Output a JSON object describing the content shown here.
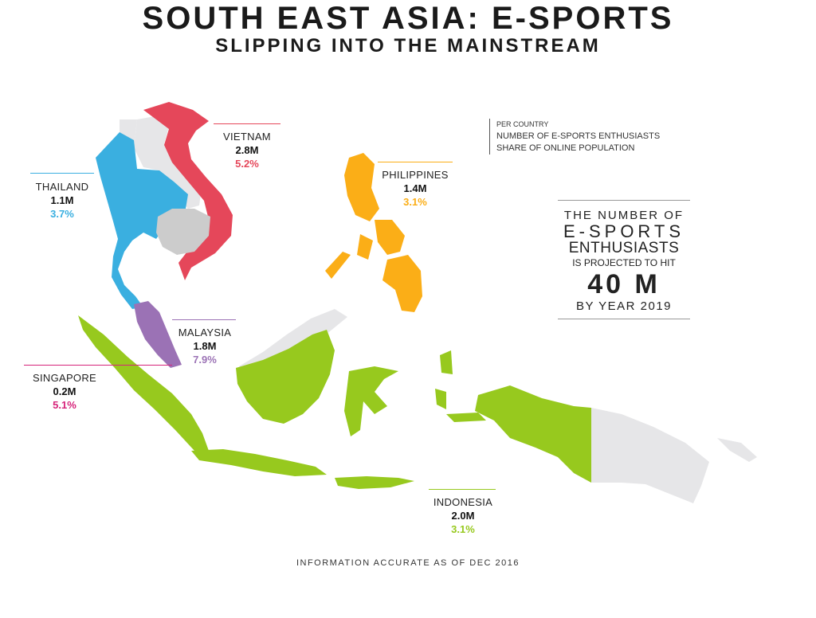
{
  "title": "SOUTH EAST ASIA: E-SPORTS",
  "subtitle": "SLIPPING INTO THE MAINSTREAM",
  "legend": {
    "line1": "PER COUNTRY",
    "line2": "NUMBER OF E-SPORTS ENTHUSIASTS",
    "line3": "SHARE OF ONLINE POPULATION"
  },
  "callout": {
    "line1": "THE NUMBER OF",
    "line2": "E-SPORTS",
    "line3": "ENTHUSIASTS",
    "line4": "IS PROJECTED TO HIT",
    "line5": "40 M",
    "line6": "BY YEAR 2019"
  },
  "countries": {
    "vietnam": {
      "name": "VIETNAM",
      "enthusiasts": "2.8M",
      "share": "5.2%",
      "color": "#e5475a"
    },
    "thailand": {
      "name": "THAILAND",
      "enthusiasts": "1.1M",
      "share": "3.7%",
      "color": "#3aafe0"
    },
    "philippines": {
      "name": "PHILIPPINES",
      "enthusiasts": "1.4M",
      "share": "3.1%",
      "color": "#fbae17"
    },
    "malaysia": {
      "name": "MALAYSIA",
      "enthusiasts": "1.8M",
      "share": "7.9%",
      "color": "#9b72b5"
    },
    "singapore": {
      "name": "SINGAPORE",
      "enthusiasts": "0.2M",
      "share": "5.1%",
      "color": "#d6237a"
    },
    "indonesia": {
      "name": "INDONESIA",
      "enthusiasts": "2.0M",
      "share": "3.1%",
      "color": "#97c91e"
    }
  },
  "colors": {
    "other_land": "#e6e6e8",
    "cambodia": "#cccccc"
  },
  "footer": "INFORMATION ACCURATE AS OF DEC 2016"
}
